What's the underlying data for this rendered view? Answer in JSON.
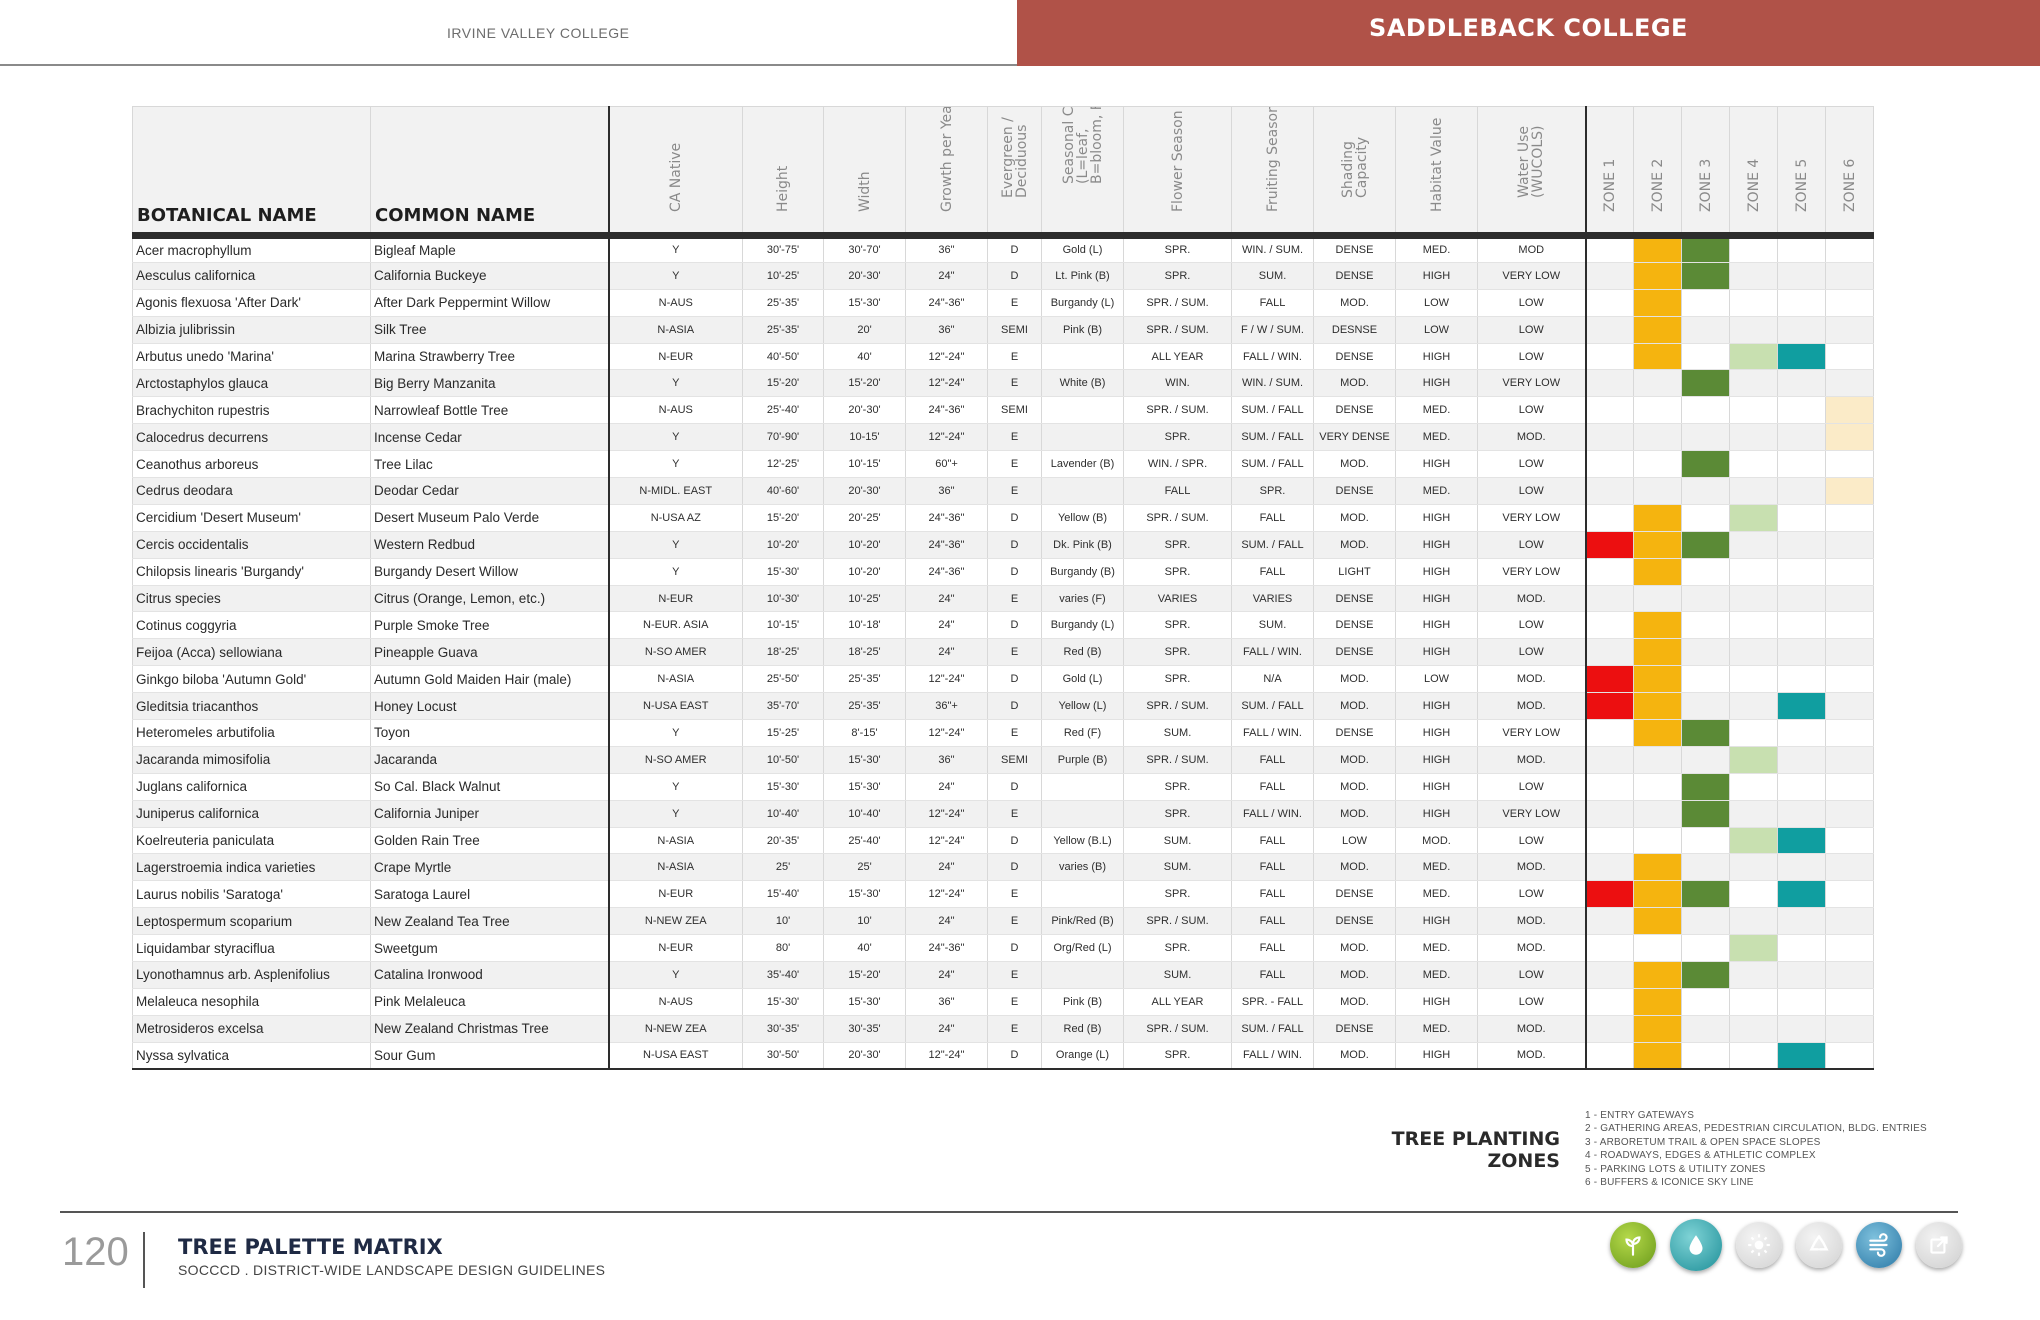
{
  "header": {
    "left_title": "IRVINE VALLEY COLLEGE",
    "right_title": "SADDLEBACK COLLEGE"
  },
  "colors": {
    "zone_orange": "#f5b40f",
    "zone_dark_green": "#5b8a36",
    "zone_light_green": "#c8e0b0",
    "zone_teal": "#109ea0",
    "zone_red": "#ec0f10",
    "zone_cream": "#fbebc8",
    "header_red": "#b05248"
  },
  "table": {
    "headers": {
      "botanical": "BOTANICAL NAME",
      "common": "COMMON NAME",
      "ca_native": "CA Native",
      "height": "Height",
      "width": "Width",
      "growth": "Growth per Year",
      "evergreen": "Evergreen /\nDeciduous",
      "seasonal": "Seasonal Color\n(L=leaf,\nB=bloom, F=fruit)",
      "flower": "Flower Season",
      "fruiting": "Fruiting Season",
      "shading": "Shading\nCapacity",
      "habitat": "Habitat Value",
      "water": "Water Use\n(WUCOLS)",
      "zone1": "ZONE 1",
      "zone2": "ZONE 2",
      "zone3": "ZONE 3",
      "zone4": "ZONE 4",
      "zone5": "ZONE 5",
      "zone6": "ZONE 6"
    },
    "rows": [
      {
        "bn": "Acer macrophyllum",
        "cn": "Bigleaf Maple",
        "nat": "Y",
        "h": "30'-75'",
        "w": "30'-70'",
        "g": "36\"",
        "ed": "D",
        "sc": "Gold (L)",
        "fl": "SPR.",
        "fr": "WIN. / SUM.",
        "sh": "DENSE",
        "hab": "MED.",
        "wu": "MOD",
        "z": [
          "",
          "o",
          "g",
          "",
          "",
          ""
        ]
      },
      {
        "bn": "Aesculus californica",
        "cn": "California Buckeye",
        "nat": "Y",
        "h": "10'-25'",
        "w": "20'-30'",
        "g": "24\"",
        "ed": "D",
        "sc": "Lt. Pink (B)",
        "fl": "SPR.",
        "fr": "SUM.",
        "sh": "DENSE",
        "hab": "HIGH",
        "wu": "VERY LOW",
        "z": [
          "",
          "o",
          "g",
          "",
          "",
          ""
        ]
      },
      {
        "bn": "Agonis flexuosa 'After Dark'",
        "cn": "After Dark Peppermint Willow",
        "nat": "N-AUS",
        "h": "25'-35'",
        "w": "15'-30'",
        "g": "24\"-36\"",
        "ed": "E",
        "sc": "Burgandy (L)",
        "fl": "SPR. / SUM.",
        "fr": "FALL",
        "sh": "MOD.",
        "hab": "LOW",
        "wu": "LOW",
        "z": [
          "",
          "o",
          "",
          "",
          "",
          ""
        ]
      },
      {
        "bn": "Albizia julibrissin",
        "cn": "Silk Tree",
        "nat": "N-ASIA",
        "h": "25'-35'",
        "w": "20'",
        "g": "36\"",
        "ed": "SEMI",
        "sc": "Pink (B)",
        "fl": "SPR. / SUM.",
        "fr": "F / W / SUM.",
        "sh": "DESNSE",
        "hab": "LOW",
        "wu": "LOW",
        "z": [
          "",
          "o",
          "",
          "",
          "",
          ""
        ]
      },
      {
        "bn": "Arbutus unedo 'Marina'",
        "cn": "Marina Strawberry Tree",
        "nat": "N-EUR",
        "h": "40'-50'",
        "w": "40'",
        "g": "12\"-24\"",
        "ed": "E",
        "sc": "",
        "fl": "ALL YEAR",
        "fr": "FALL / WIN.",
        "sh": "DENSE",
        "hab": "HIGH",
        "wu": "LOW",
        "z": [
          "",
          "o",
          "",
          "l",
          "t",
          ""
        ]
      },
      {
        "bn": "Arctostaphylos glauca",
        "cn": "Big Berry Manzanita",
        "nat": "Y",
        "h": "15'-20'",
        "w": "15'-20'",
        "g": "12\"-24\"",
        "ed": "E",
        "sc": "White (B)",
        "fl": "WIN.",
        "fr": "WIN. / SUM.",
        "sh": "MOD.",
        "hab": "HIGH",
        "wu": "VERY LOW",
        "z": [
          "",
          "",
          "g",
          "",
          "",
          ""
        ]
      },
      {
        "bn": "Brachychiton rupestris",
        "cn": "Narrowleaf Bottle Tree",
        "nat": "N-AUS",
        "h": "25'-40'",
        "w": "20'-30'",
        "g": "24\"-36\"",
        "ed": "SEMI",
        "sc": "",
        "fl": "SPR. / SUM.",
        "fr": "SUM. / FALL",
        "sh": "DENSE",
        "hab": "MED.",
        "wu": "LOW",
        "z": [
          "",
          "",
          "",
          "",
          "",
          "c"
        ]
      },
      {
        "bn": "Calocedrus decurrens",
        "cn": "Incense Cedar",
        "nat": "Y",
        "h": "70'-90'",
        "w": "10-15'",
        "g": "12\"-24\"",
        "ed": "E",
        "sc": "",
        "fl": "SPR.",
        "fr": "SUM. / FALL",
        "sh": "VERY DENSE",
        "hab": "MED.",
        "wu": "MOD.",
        "z": [
          "",
          "",
          "",
          "",
          "",
          "c"
        ]
      },
      {
        "bn": "Ceanothus arboreus",
        "cn": "Tree Lilac",
        "nat": "Y",
        "h": "12'-25'",
        "w": "10'-15'",
        "g": "60\"+",
        "ed": "E",
        "sc": "Lavender (B)",
        "fl": "WIN. / SPR.",
        "fr": "SUM. / FALL",
        "sh": "MOD.",
        "hab": "HIGH",
        "wu": "LOW",
        "z": [
          "",
          "",
          "g",
          "",
          "",
          ""
        ]
      },
      {
        "bn": "Cedrus deodara",
        "cn": "Deodar Cedar",
        "nat": "N-MIDL. EAST",
        "h": "40'-60'",
        "w": "20'-30'",
        "g": "36\"",
        "ed": "E",
        "sc": "",
        "fl": "FALL",
        "fr": "SPR.",
        "sh": "DENSE",
        "hab": "MED.",
        "wu": "LOW",
        "z": [
          "",
          "",
          "",
          "",
          "",
          "c"
        ]
      },
      {
        "bn": "Cercidium 'Desert Museum'",
        "cn": "Desert Museum Palo Verde",
        "nat": "N-USA AZ",
        "h": "15'-20'",
        "w": "20'-25'",
        "g": "24\"-36\"",
        "ed": "D",
        "sc": "Yellow (B)",
        "fl": "SPR. / SUM.",
        "fr": "FALL",
        "sh": "MOD.",
        "hab": "HIGH",
        "wu": "VERY LOW",
        "z": [
          "",
          "o",
          "",
          "l",
          "",
          ""
        ]
      },
      {
        "bn": "Cercis occidentalis",
        "cn": "Western Redbud",
        "nat": "Y",
        "h": "10'-20'",
        "w": "10'-20'",
        "g": "24\"-36\"",
        "ed": "D",
        "sc": "Dk. Pink (B)",
        "fl": "SPR.",
        "fr": "SUM. / FALL",
        "sh": "MOD.",
        "hab": "HIGH",
        "wu": "LOW",
        "z": [
          "r",
          "o",
          "g",
          "",
          "",
          ""
        ]
      },
      {
        "bn": "Chilopsis linearis 'Burgandy'",
        "cn": "Burgandy Desert Willow",
        "nat": "Y",
        "h": "15'-30'",
        "w": "10'-20'",
        "g": "24\"-36\"",
        "ed": "D",
        "sc": "Burgandy (B)",
        "fl": "SPR.",
        "fr": "FALL",
        "sh": "LIGHT",
        "hab": "HIGH",
        "wu": "VERY LOW",
        "z": [
          "",
          "o",
          "",
          "",
          "",
          ""
        ]
      },
      {
        "bn": "Citrus species",
        "cn": "Citrus (Orange, Lemon, etc.)",
        "nat": "N-EUR",
        "h": "10'-30'",
        "w": "10'-25'",
        "g": "24\"",
        "ed": "E",
        "sc": "varies (F)",
        "fl": "VARIES",
        "fr": "VARIES",
        "sh": "DENSE",
        "hab": "HIGH",
        "wu": "MOD.",
        "z": [
          "",
          "",
          "",
          "",
          "",
          ""
        ]
      },
      {
        "bn": "Cotinus coggyria",
        "cn": "Purple Smoke Tree",
        "nat": "N-EUR. ASIA",
        "h": "10'-15'",
        "w": "10'-18'",
        "g": "24\"",
        "ed": "D",
        "sc": "Burgandy (L)",
        "fl": "SPR.",
        "fr": "SUM.",
        "sh": "DENSE",
        "hab": "HIGH",
        "wu": "LOW",
        "z": [
          "",
          "o",
          "",
          "",
          "",
          ""
        ]
      },
      {
        "bn": "Feijoa (Acca) sellowiana",
        "cn": "Pineapple Guava",
        "nat": "N-SO AMER",
        "h": "18'-25'",
        "w": "18'-25'",
        "g": "24\"",
        "ed": "E",
        "sc": "Red (B)",
        "fl": "SPR.",
        "fr": "FALL / WIN.",
        "sh": "DENSE",
        "hab": "HIGH",
        "wu": "LOW",
        "z": [
          "",
          "o",
          "",
          "",
          "",
          ""
        ]
      },
      {
        "bn": "Ginkgo biloba 'Autumn Gold'",
        "cn": "Autumn Gold Maiden Hair (male)",
        "nat": "N-ASIA",
        "h": "25'-50'",
        "w": "25'-35'",
        "g": "12\"-24\"",
        "ed": "D",
        "sc": "Gold (L)",
        "fl": "SPR.",
        "fr": "N/A",
        "sh": "MOD.",
        "hab": "LOW",
        "wu": "MOD.",
        "z": [
          "r",
          "o",
          "",
          "",
          "",
          ""
        ]
      },
      {
        "bn": "Gleditsia triacanthos",
        "cn": "Honey Locust",
        "nat": "N-USA EAST",
        "h": "35'-70'",
        "w": "25'-35'",
        "g": "36\"+",
        "ed": "D",
        "sc": "Yellow (L)",
        "fl": "SPR. / SUM.",
        "fr": "SUM. / FALL",
        "sh": "MOD.",
        "hab": "HIGH",
        "wu": "MOD.",
        "z": [
          "r",
          "o",
          "",
          "",
          "t",
          ""
        ]
      },
      {
        "bn": "Heteromeles arbutifolia",
        "cn": "Toyon",
        "nat": "Y",
        "h": "15'-25'",
        "w": "8'-15'",
        "g": "12\"-24\"",
        "ed": "E",
        "sc": "Red (F)",
        "fl": "SUM.",
        "fr": "FALL / WIN.",
        "sh": "DENSE",
        "hab": "HIGH",
        "wu": "VERY LOW",
        "z": [
          "",
          "o",
          "g",
          "",
          "",
          ""
        ]
      },
      {
        "bn": "Jacaranda mimosifolia",
        "cn": "Jacaranda",
        "nat": "N-SO AMER",
        "h": "10'-50'",
        "w": "15'-30'",
        "g": "36\"",
        "ed": "SEMI",
        "sc": "Purple (B)",
        "fl": "SPR. / SUM.",
        "fr": "FALL",
        "sh": "MOD.",
        "hab": "HIGH",
        "wu": "MOD.",
        "z": [
          "",
          "",
          "",
          "l",
          "",
          ""
        ]
      },
      {
        "bn": "Juglans californica",
        "cn": "So Cal. Black Walnut",
        "nat": "Y",
        "h": "15'-30'",
        "w": "15'-30'",
        "g": "24\"",
        "ed": "D",
        "sc": "",
        "fl": "SPR.",
        "fr": "FALL",
        "sh": "MOD.",
        "hab": "HIGH",
        "wu": "LOW",
        "z": [
          "",
          "",
          "g",
          "",
          "",
          ""
        ]
      },
      {
        "bn": "Juniperus californica",
        "cn": "California Juniper",
        "nat": "Y",
        "h": "10'-40'",
        "w": "10'-40'",
        "g": "12\"-24\"",
        "ed": "E",
        "sc": "",
        "fl": "SPR.",
        "fr": "FALL / WIN.",
        "sh": "MOD.",
        "hab": "HIGH",
        "wu": "VERY LOW",
        "z": [
          "",
          "",
          "g",
          "",
          "",
          ""
        ]
      },
      {
        "bn": "Koelreuteria paniculata",
        "cn": "Golden Rain Tree",
        "nat": "N-ASIA",
        "h": "20'-35'",
        "w": "25'-40'",
        "g": "12\"-24\"",
        "ed": "D",
        "sc": "Yellow (B.L)",
        "fl": "SUM.",
        "fr": "FALL",
        "sh": "LOW",
        "hab": "MOD.",
        "wu": "LOW",
        "z": [
          "",
          "",
          "",
          "l",
          "t",
          ""
        ]
      },
      {
        "bn": "Lagerstroemia indica varieties",
        "cn": "Crape Myrtle",
        "nat": "N-ASIA",
        "h": "25'",
        "w": "25'",
        "g": "24\"",
        "ed": "D",
        "sc": "varies (B)",
        "fl": "SUM.",
        "fr": "FALL",
        "sh": "MOD.",
        "hab": "MED.",
        "wu": "MOD.",
        "z": [
          "",
          "o",
          "",
          "",
          "",
          ""
        ]
      },
      {
        "bn": "Laurus nobilis 'Saratoga'",
        "cn": "Saratoga Laurel",
        "nat": "N-EUR",
        "h": "15'-40'",
        "w": "15'-30'",
        "g": "12\"-24\"",
        "ed": "E",
        "sc": "",
        "fl": "SPR.",
        "fr": "FALL",
        "sh": "DENSE",
        "hab": "MED.",
        "wu": "LOW",
        "z": [
          "r",
          "o",
          "g",
          "",
          "t",
          ""
        ]
      },
      {
        "bn": "Leptospermum scoparium",
        "cn": "New Zealand Tea Tree",
        "nat": "N-NEW ZEA",
        "h": "10'",
        "w": "10'",
        "g": "24\"",
        "ed": "E",
        "sc": "Pink/Red (B)",
        "fl": "SPR. / SUM.",
        "fr": "FALL",
        "sh": "DENSE",
        "hab": "HIGH",
        "wu": "MOD.",
        "z": [
          "",
          "o",
          "",
          "",
          "",
          ""
        ]
      },
      {
        "bn": "Liquidambar styraciflua",
        "cn": "Sweetgum",
        "nat": "N-EUR",
        "h": "80'",
        "w": "40'",
        "g": "24\"-36\"",
        "ed": "D",
        "sc": "Org/Red (L)",
        "fl": "SPR.",
        "fr": "FALL",
        "sh": "MOD.",
        "hab": "MED.",
        "wu": "MOD.",
        "z": [
          "",
          "",
          "",
          "l",
          "",
          ""
        ]
      },
      {
        "bn": "Lyonothamnus arb. Asplenifolius",
        "cn": "Catalina Ironwood",
        "nat": "Y",
        "h": "35'-40'",
        "w": "15'-20'",
        "g": "24\"",
        "ed": "E",
        "sc": "",
        "fl": "SUM.",
        "fr": "FALL",
        "sh": "MOD.",
        "hab": "MED.",
        "wu": "LOW",
        "z": [
          "",
          "o",
          "g",
          "",
          "",
          ""
        ]
      },
      {
        "bn": "Melaleuca nesophila",
        "cn": "Pink Melaleuca",
        "nat": "N-AUS",
        "h": "15'-30'",
        "w": "15'-30'",
        "g": "36\"",
        "ed": "E",
        "sc": "Pink (B)",
        "fl": "ALL YEAR",
        "fr": "SPR. - FALL",
        "sh": "MOD.",
        "hab": "HIGH",
        "wu": "LOW",
        "z": [
          "",
          "o",
          "",
          "",
          "",
          ""
        ]
      },
      {
        "bn": "Metrosideros excelsa",
        "cn": "New Zealand Christmas Tree",
        "nat": "N-NEW ZEA",
        "h": "30'-35'",
        "w": "30'-35'",
        "g": "24\"",
        "ed": "E",
        "sc": "Red (B)",
        "fl": "SPR. / SUM.",
        "fr": "SUM. / FALL",
        "sh": "DENSE",
        "hab": "MED.",
        "wu": "MOD.",
        "z": [
          "",
          "o",
          "",
          "",
          "",
          ""
        ]
      },
      {
        "bn": "Nyssa sylvatica",
        "cn": "Sour Gum",
        "nat": "N-USA EAST",
        "h": "30'-50'",
        "w": "20'-30'",
        "g": "12\"-24\"",
        "ed": "D",
        "sc": "Orange (L)",
        "fl": "SPR.",
        "fr": "FALL / WIN.",
        "sh": "MOD.",
        "hab": "HIGH",
        "wu": "MOD.",
        "z": [
          "",
          "o",
          "",
          "",
          "t",
          ""
        ]
      }
    ]
  },
  "legend": {
    "title_line1": "TREE PLANTING",
    "title_line2": "ZONES",
    "items": [
      "1 - ENTRY GATEWAYS",
      "2 - GATHERING AREAS, PEDESTRIAN CIRCULATION, BLDG. ENTRIES",
      "3 - ARBORETUM TRAIL & OPEN SPACE SLOPES",
      "4 - ROADWAYS, EDGES & ATHLETIC COMPLEX",
      "5 - PARKING LOTS & UTILITY ZONES",
      "6 - BUFFERS & ICONICE SKY LINE"
    ]
  },
  "footer": {
    "page_number": "120",
    "title": "TREE PALETTE MATRIX",
    "subtitle": "SOCCCD . DISTRICT-WIDE LANDSCAPE DESIGN GUIDELINES",
    "icons": [
      "sprout-icon",
      "water-drop-icon",
      "sun-icon",
      "recycle-icon",
      "wind-icon",
      "external-link-icon"
    ]
  }
}
